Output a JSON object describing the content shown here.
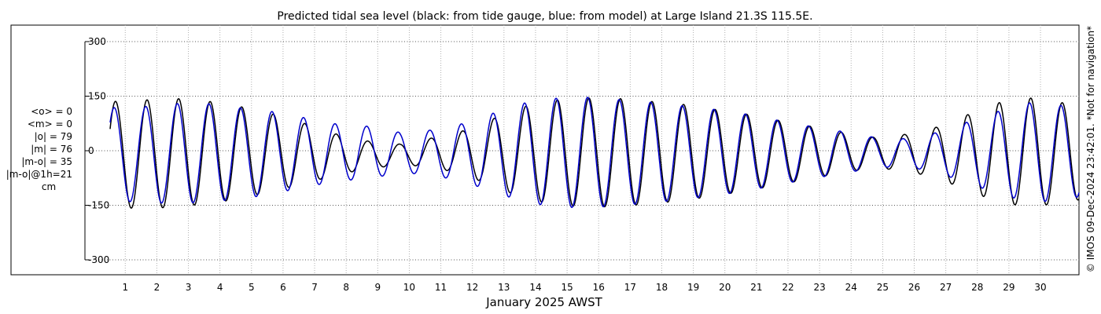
{
  "chart_data": {
    "type": "line",
    "title": "Predicted tidal sea level (black: from tide gauge, blue: from model) at Large Island 21.3S 115.5E.",
    "xlabel": "January 2025 AWST",
    "ylabel": "",
    "xlim": [
      0.3,
      31.0
    ],
    "ylim": [
      -320,
      320
    ],
    "y_ticks": [
      -300,
      -150,
      0,
      150,
      300
    ],
    "y_tick_labels": [
      "-300",
      "-150",
      "0",
      "150",
      "300"
    ],
    "x_ticks": [
      1,
      2,
      3,
      4,
      5,
      6,
      7,
      8,
      9,
      10,
      11,
      12,
      13,
      14,
      15,
      16,
      17,
      18,
      19,
      20,
      21,
      22,
      23,
      24,
      25,
      26,
      27,
      28,
      29,
      30
    ],
    "x_tick_labels": [
      "1",
      "2",
      "3",
      "4",
      "5",
      "6",
      "7",
      "8",
      "9",
      "10",
      "11",
      "12",
      "13",
      "14",
      "15",
      "16",
      "17",
      "18",
      "19",
      "20",
      "21",
      "22",
      "23",
      "24",
      "25",
      "26",
      "27",
      "28",
      "29",
      "30"
    ],
    "grid": true,
    "series": [
      {
        "name": "tide gauge",
        "color": "#000000",
        "model": "semidiurnal",
        "period_days": 1.0,
        "phase_day": 0.47,
        "envelope": {
          "days": [
            0.3,
            1.5,
            2.5,
            3.5,
            4.5,
            5.5,
            6.5,
            7.5,
            8.5,
            9.5,
            10.5,
            11.5,
            12.5,
            13.5,
            14.5,
            15.5,
            16.5,
            17.5,
            18.5,
            19.5,
            20.5,
            21.5,
            22.5,
            23.5,
            24.5,
            25.5,
            26.5,
            27.5,
            28.5,
            29.5,
            30.4,
            31.0
          ],
          "amplitude_cm": [
            145,
            150,
            148,
            140,
            125,
            105,
            82,
            55,
            38,
            28,
            40,
            60,
            95,
            128,
            145,
            150,
            148,
            140,
            132,
            118,
            105,
            88,
            72,
            55,
            42,
            50,
            70,
            105,
            138,
            150,
            138,
            130
          ],
          "mean_cm": [
            -10,
            -10,
            -5,
            -5,
            -5,
            -5,
            -8,
            -10,
            -12,
            -10,
            -5,
            -5,
            -5,
            -5,
            -5,
            -5,
            -5,
            -5,
            -5,
            -5,
            -5,
            -5,
            -5,
            -5,
            -5,
            -5,
            -5,
            -5,
            -5,
            -5,
            -5,
            -5
          ]
        }
      },
      {
        "name": "model",
        "color": "#0000cc",
        "model": "semidiurnal",
        "period_days": 1.0,
        "phase_day": 0.43,
        "envelope": {
          "days": [
            0.3,
            1.5,
            2.5,
            3.5,
            4.5,
            5.5,
            6.5,
            7.5,
            8.5,
            9.5,
            10.5,
            11.5,
            12.5,
            13.5,
            14.5,
            15.5,
            16.5,
            17.5,
            18.5,
            19.5,
            20.5,
            21.5,
            22.5,
            23.5,
            24.5,
            25.5,
            26.5,
            27.5,
            28.5,
            29.5,
            30.4,
            31.0
          ],
          "amplitude_cm": [
            128,
            132,
            138,
            134,
            125,
            112,
            95,
            78,
            72,
            55,
            62,
            80,
            110,
            138,
            150,
            152,
            145,
            138,
            128,
            118,
            105,
            88,
            72,
            58,
            42,
            38,
            55,
            85,
            115,
            138,
            130,
            122
          ],
          "mean_cm": [
            -10,
            -10,
            -8,
            -5,
            -8,
            -5,
            -5,
            -5,
            -5,
            -5,
            -5,
            -5,
            -5,
            -5,
            -5,
            -5,
            -5,
            -5,
            -5,
            -5,
            -5,
            -5,
            -5,
            -5,
            -5,
            -5,
            -5,
            -5,
            -5,
            -5,
            -5,
            -5
          ]
        }
      }
    ],
    "stats": [
      "<o> = 0",
      "<m> = 0",
      "|o| = 79",
      "|m| = 76",
      "|m-o| = 35",
      "|m-o|@1h=21",
      "cm"
    ],
    "credit": "© IMOS 09-Dec-2024 23:42:01. *Not for navigation*"
  }
}
